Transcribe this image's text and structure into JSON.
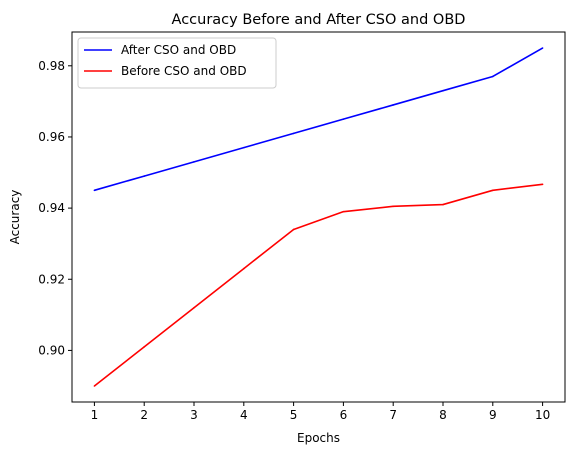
{
  "chart_data": {
    "type": "line",
    "title": "Accuracy Before and After CSO and OBD",
    "xlabel": "Epochs",
    "ylabel": "Accuracy",
    "x": [
      1,
      2,
      3,
      4,
      5,
      6,
      7,
      8,
      9,
      10
    ],
    "xlim": [
      0.55,
      10.45
    ],
    "ylim": [
      0.8855,
      0.9895
    ],
    "xticks": [
      "1",
      "2",
      "3",
      "4",
      "5",
      "6",
      "7",
      "8",
      "9",
      "10"
    ],
    "yticks": [
      "0.90",
      "0.92",
      "0.94",
      "0.96",
      "0.98"
    ],
    "grid": false,
    "legend_position": "top-left",
    "series": [
      {
        "name": "After CSO and OBD",
        "color": "#0000ff",
        "values": [
          0.945,
          0.949,
          0.953,
          0.957,
          0.961,
          0.965,
          0.969,
          0.973,
          0.977,
          0.985
        ]
      },
      {
        "name": "Before CSO and OBD",
        "color": "#ff0000",
        "values": [
          0.89,
          0.901,
          0.912,
          0.923,
          0.934,
          0.939,
          0.9405,
          0.941,
          0.945,
          0.9467
        ]
      }
    ]
  }
}
